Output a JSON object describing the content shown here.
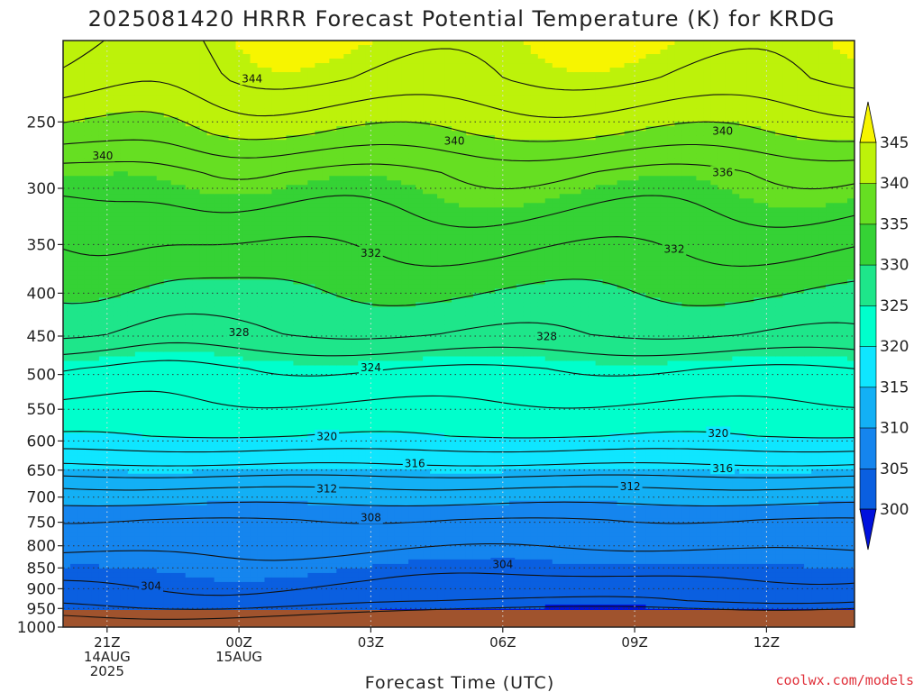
{
  "chart_data": {
    "type": "contour",
    "title": "2025081420 HRRR Forecast Potential Temperature (K) for KRDG",
    "xlabel": "Forecast Time (UTC)",
    "ylabel": "",
    "credit": "coolwx.com/models",
    "y_scale": "log",
    "y_reversed": true,
    "ylim": [
      1000,
      200
    ],
    "y_ticks": [
      250,
      300,
      350,
      400,
      450,
      500,
      550,
      600,
      650,
      700,
      750,
      800,
      850,
      900,
      950,
      1000
    ],
    "x_range_hours": [
      -1,
      17
    ],
    "x_ticks": [
      {
        "hour": 0,
        "label": "21Z",
        "date": "14AUG",
        "year": "2025"
      },
      {
        "hour": 3,
        "label": "00Z",
        "date": "15AUG",
        "year": ""
      },
      {
        "hour": 6,
        "label": "03Z",
        "date": "",
        "year": ""
      },
      {
        "hour": 9,
        "label": "06Z",
        "date": "",
        "year": ""
      },
      {
        "hour": 12,
        "label": "09Z",
        "date": "",
        "year": ""
      },
      {
        "hour": 15,
        "label": "12Z",
        "date": "",
        "year": ""
      }
    ],
    "grid": true,
    "colorbar": {
      "levels": [
        300,
        305,
        310,
        315,
        320,
        325,
        330,
        335,
        340,
        345
      ],
      "colors": [
        "#0011dd",
        "#0a5fe0",
        "#1585ee",
        "#13b0f5",
        "#0fe6ff",
        "#00ffcc",
        "#1ee68a",
        "#35d235",
        "#66df22",
        "#bdf20a",
        "#f7f500"
      ],
      "extend": "both",
      "placement": "right"
    },
    "surface_color": "#a0532d",
    "contour_labels": [
      {
        "value": 344,
        "hour": 3.3,
        "p": 222
      },
      {
        "value": 340,
        "hour": -0.1,
        "p": 274
      },
      {
        "value": 340,
        "hour": 7.9,
        "p": 263
      },
      {
        "value": 340,
        "hour": 14.0,
        "p": 256
      },
      {
        "value": 336,
        "hour": 14.0,
        "p": 287
      },
      {
        "value": 332,
        "hour": 6.0,
        "p": 358
      },
      {
        "value": 332,
        "hour": 12.9,
        "p": 354
      },
      {
        "value": 328,
        "hour": 3.0,
        "p": 445
      },
      {
        "value": 328,
        "hour": 10.0,
        "p": 450
      },
      {
        "value": 324,
        "hour": 6.0,
        "p": 490
      },
      {
        "value": 320,
        "hour": 5.0,
        "p": 592
      },
      {
        "value": 320,
        "hour": 13.9,
        "p": 587
      },
      {
        "value": 316,
        "hour": 7.0,
        "p": 638
      },
      {
        "value": 316,
        "hour": 14.0,
        "p": 646
      },
      {
        "value": 312,
        "hour": 5.0,
        "p": 683
      },
      {
        "value": 312,
        "hour": 11.9,
        "p": 679
      },
      {
        "value": 308,
        "hour": 6.0,
        "p": 740
      },
      {
        "value": 304,
        "hour": 1.0,
        "p": 893
      },
      {
        "value": 304,
        "hour": 9.0,
        "p": 841
      }
    ]
  }
}
